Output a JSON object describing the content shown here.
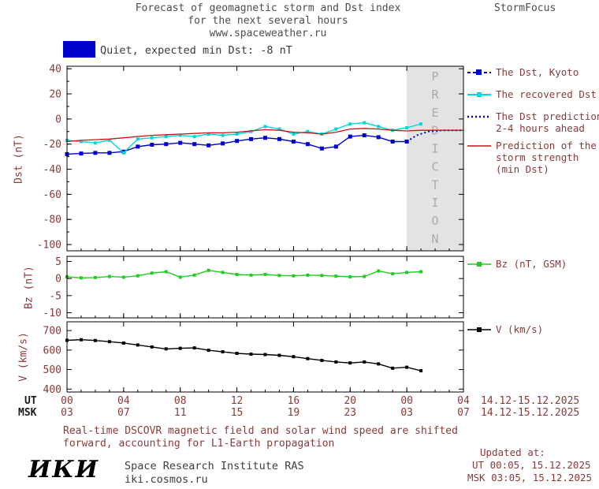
{
  "header": {
    "title_line1": "Forecast of geomagnetic storm and Dst index",
    "title_line2": "for the next several hours",
    "title_line3": "www.spaceweather.ru",
    "brand": "StormFocus"
  },
  "status": {
    "label": "Quiet, expected min Dst: -8 nT",
    "color": "#0000cd"
  },
  "legend": {
    "dst_kyoto": "The Dst, Kyoto",
    "recovered": "The recovered Dst",
    "prediction_line1": "The Dst prediction",
    "prediction_line2": "2-4 hours ahead",
    "storm_line1": "Prediction of the",
    "storm_line2": "storm strength",
    "storm_line3": "(min Dst)",
    "bz": "Bz (nT, GSM)",
    "v": "V (km/s)"
  },
  "axes": {
    "dst_label": "Dst (nT)",
    "bz_label": "Bz (nT)",
    "v_label": "V (km/s)",
    "ut_prefix": "UT",
    "msk_prefix": "MSK",
    "ut_ticks": [
      "00",
      "04",
      "08",
      "12",
      "16",
      "20",
      "00",
      "04"
    ],
    "msk_ticks": [
      "03",
      "07",
      "11",
      "15",
      "19",
      "23",
      "03",
      "07"
    ],
    "ut_date": "14.12-15.12.2025",
    "msk_date": "14.12-15.12.2025"
  },
  "prediction_label": "PREDICTION",
  "footer": {
    "note_line1": "Real-time DSCOVR magnetic field and solar wind speed are shifted",
    "note_line2": "forward, accounting for L1-Earth propagation",
    "updated_title": "Updated at:",
    "updated_ut": "UT  00:05, 15.12.2025",
    "updated_msk": "MSK 03:05, 15.12.2025",
    "logo": "ИКИ",
    "institute": "Space Research Institute RAS",
    "site": "iki.cosmos.ru"
  },
  "chart_data": [
    {
      "type": "line",
      "name": "dst",
      "ylabel": "Dst (nT)",
      "xlim": [
        0,
        28
      ],
      "ylim": [
        -105,
        42
      ],
      "yticks": [
        40,
        20,
        0,
        -20,
        -40,
        -60,
        -80,
        -100
      ],
      "xticks": [
        0,
        4,
        8,
        12,
        16,
        20,
        24,
        28
      ],
      "prediction_region": [
        24,
        28
      ],
      "series": [
        {
          "name": "The Dst, Kyoto",
          "color": "#0000cd",
          "marker": "square",
          "marker_size": 5,
          "x": [
            0,
            1,
            2,
            3,
            4,
            5,
            6,
            7,
            8,
            9,
            10,
            11,
            12,
            13,
            14,
            15,
            16,
            17,
            18,
            19,
            20,
            21,
            22,
            23,
            24
          ],
          "y": [
            -28,
            -27.5,
            -27,
            -27,
            -26,
            -22,
            -20.5,
            -20,
            -19,
            -20,
            -21,
            -19.5,
            -17.5,
            -16,
            -15,
            -16,
            -18,
            -20,
            -23.5,
            -22,
            -14,
            -13,
            -14.5,
            -18,
            -18
          ]
        },
        {
          "name": "The recovered Dst",
          "color": "#00d8d8",
          "marker": "square",
          "marker_size": 4,
          "x": [
            0,
            1,
            2,
            3,
            4,
            5,
            6,
            7,
            8,
            9,
            10,
            11,
            12,
            13,
            14,
            15,
            16,
            17,
            18,
            19,
            20,
            21,
            22,
            23,
            24,
            25
          ],
          "y": [
            -17,
            -18,
            -19,
            -17,
            -27,
            -16,
            -15,
            -14,
            -13,
            -14,
            -12,
            -13,
            -12,
            -10,
            -6,
            -8,
            -12,
            -10,
            -12,
            -8,
            -4,
            -3,
            -6,
            -9,
            -7,
            -4
          ]
        },
        {
          "name": "The Dst prediction 2-4 hours ahead",
          "color": "#0000cd",
          "dash": "dotted",
          "width": 2,
          "x": [
            24,
            24.7,
            25.5,
            26.5,
            28
          ],
          "y": [
            -18,
            -13,
            -10,
            -9,
            -9
          ]
        },
        {
          "name": "Prediction of the storm strength (min Dst)",
          "color": "#cc1111",
          "width": 1.3,
          "x": [
            0,
            1,
            2,
            3,
            4,
            5,
            6,
            7,
            8,
            9,
            10,
            11,
            12,
            13,
            14,
            15,
            16,
            17,
            18,
            19,
            20,
            21,
            22,
            23,
            24,
            25,
            26,
            27,
            28
          ],
          "y": [
            -18,
            -17,
            -16.5,
            -16,
            -15,
            -14,
            -13,
            -12.5,
            -12,
            -11.5,
            -11,
            -11,
            -10.5,
            -9.5,
            -8.5,
            -9,
            -10.5,
            -11,
            -12,
            -10.5,
            -8,
            -7.5,
            -8,
            -9,
            -9.5,
            -9,
            -9,
            -9,
            -9
          ]
        }
      ]
    },
    {
      "type": "line",
      "name": "bz",
      "ylabel": "Bz (nT)",
      "xlim": [
        0,
        28
      ],
      "ylim": [
        -11.5,
        6.5
      ],
      "yticks": [
        5,
        0,
        -5,
        -10
      ],
      "xticks": [
        0,
        4,
        8,
        12,
        16,
        20,
        24,
        28
      ],
      "series": [
        {
          "name": "Bz (nT, GSM)",
          "color": "#22cc22",
          "marker": "square",
          "marker_size": 4,
          "x": [
            0,
            1,
            2,
            3,
            4,
            5,
            6,
            7,
            8,
            9,
            10,
            11,
            12,
            13,
            14,
            15,
            16,
            17,
            18,
            19,
            20,
            21,
            22,
            23,
            24,
            25
          ],
          "y": [
            0.5,
            0.2,
            0.3,
            0.6,
            0.4,
            0.8,
            1.6,
            2.0,
            0.4,
            1.0,
            2.4,
            1.8,
            1.2,
            1.0,
            1.2,
            0.9,
            0.8,
            1.0,
            0.9,
            0.7,
            0.5,
            0.6,
            2.2,
            1.4,
            1.8,
            2.0
          ]
        }
      ]
    },
    {
      "type": "line",
      "name": "v",
      "ylabel": "V (km/s)",
      "xlim": [
        0,
        28
      ],
      "ylim": [
        385,
        745
      ],
      "yticks": [
        700,
        600,
        500,
        400
      ],
      "xticks": [
        0,
        4,
        8,
        12,
        16,
        20,
        24,
        28
      ],
      "series": [
        {
          "name": "V (km/s)",
          "color": "#000000",
          "marker": "square",
          "marker_size": 4,
          "x": [
            0,
            1,
            2,
            3,
            4,
            5,
            6,
            7,
            8,
            9,
            10,
            11,
            12,
            13,
            14,
            15,
            16,
            17,
            18,
            19,
            20,
            21,
            22,
            23,
            24,
            25
          ],
          "y": [
            650,
            653,
            649,
            643,
            636,
            626,
            616,
            606,
            609,
            611,
            599,
            591,
            583,
            579,
            577,
            573,
            566,
            556,
            547,
            539,
            534,
            539,
            529,
            507,
            512,
            494
          ]
        }
      ]
    }
  ]
}
